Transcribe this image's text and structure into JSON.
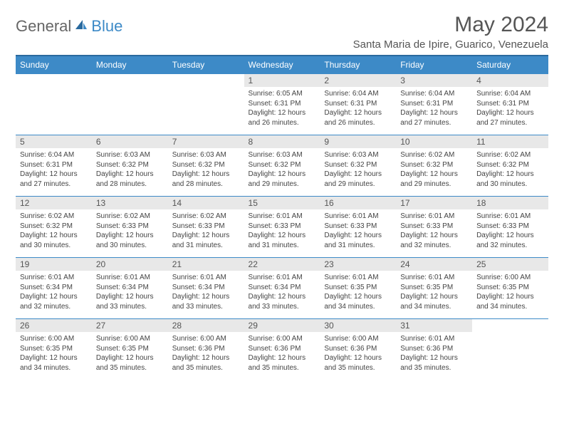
{
  "logo": {
    "part1": "General",
    "part2": "Blue"
  },
  "title": "May 2024",
  "location": "Santa Maria de Ipire, Guarico, Venezuela",
  "colors": {
    "header_bg": "#3d8ac7",
    "header_border": "#2a6a9e",
    "daynum_bg": "#e8e8e8",
    "row_border": "#3d8ac7",
    "text": "#444",
    "title_text": "#555",
    "logo_gray": "#666",
    "logo_blue": "#3d8ac7"
  },
  "dayNames": [
    "Sunday",
    "Monday",
    "Tuesday",
    "Wednesday",
    "Thursday",
    "Friday",
    "Saturday"
  ],
  "weeks": [
    [
      null,
      null,
      null,
      {
        "n": "1",
        "sr": "6:05 AM",
        "ss": "6:31 PM",
        "dl": "12 hours and 26 minutes."
      },
      {
        "n": "2",
        "sr": "6:04 AM",
        "ss": "6:31 PM",
        "dl": "12 hours and 26 minutes."
      },
      {
        "n": "3",
        "sr": "6:04 AM",
        "ss": "6:31 PM",
        "dl": "12 hours and 27 minutes."
      },
      {
        "n": "4",
        "sr": "6:04 AM",
        "ss": "6:31 PM",
        "dl": "12 hours and 27 minutes."
      }
    ],
    [
      {
        "n": "5",
        "sr": "6:04 AM",
        "ss": "6:31 PM",
        "dl": "12 hours and 27 minutes."
      },
      {
        "n": "6",
        "sr": "6:03 AM",
        "ss": "6:32 PM",
        "dl": "12 hours and 28 minutes."
      },
      {
        "n": "7",
        "sr": "6:03 AM",
        "ss": "6:32 PM",
        "dl": "12 hours and 28 minutes."
      },
      {
        "n": "8",
        "sr": "6:03 AM",
        "ss": "6:32 PM",
        "dl": "12 hours and 29 minutes."
      },
      {
        "n": "9",
        "sr": "6:03 AM",
        "ss": "6:32 PM",
        "dl": "12 hours and 29 minutes."
      },
      {
        "n": "10",
        "sr": "6:02 AM",
        "ss": "6:32 PM",
        "dl": "12 hours and 29 minutes."
      },
      {
        "n": "11",
        "sr": "6:02 AM",
        "ss": "6:32 PM",
        "dl": "12 hours and 30 minutes."
      }
    ],
    [
      {
        "n": "12",
        "sr": "6:02 AM",
        "ss": "6:32 PM",
        "dl": "12 hours and 30 minutes."
      },
      {
        "n": "13",
        "sr": "6:02 AM",
        "ss": "6:33 PM",
        "dl": "12 hours and 30 minutes."
      },
      {
        "n": "14",
        "sr": "6:02 AM",
        "ss": "6:33 PM",
        "dl": "12 hours and 31 minutes."
      },
      {
        "n": "15",
        "sr": "6:01 AM",
        "ss": "6:33 PM",
        "dl": "12 hours and 31 minutes."
      },
      {
        "n": "16",
        "sr": "6:01 AM",
        "ss": "6:33 PM",
        "dl": "12 hours and 31 minutes."
      },
      {
        "n": "17",
        "sr": "6:01 AM",
        "ss": "6:33 PM",
        "dl": "12 hours and 32 minutes."
      },
      {
        "n": "18",
        "sr": "6:01 AM",
        "ss": "6:33 PM",
        "dl": "12 hours and 32 minutes."
      }
    ],
    [
      {
        "n": "19",
        "sr": "6:01 AM",
        "ss": "6:34 PM",
        "dl": "12 hours and 32 minutes."
      },
      {
        "n": "20",
        "sr": "6:01 AM",
        "ss": "6:34 PM",
        "dl": "12 hours and 33 minutes."
      },
      {
        "n": "21",
        "sr": "6:01 AM",
        "ss": "6:34 PM",
        "dl": "12 hours and 33 minutes."
      },
      {
        "n": "22",
        "sr": "6:01 AM",
        "ss": "6:34 PM",
        "dl": "12 hours and 33 minutes."
      },
      {
        "n": "23",
        "sr": "6:01 AM",
        "ss": "6:35 PM",
        "dl": "12 hours and 34 minutes."
      },
      {
        "n": "24",
        "sr": "6:01 AM",
        "ss": "6:35 PM",
        "dl": "12 hours and 34 minutes."
      },
      {
        "n": "25",
        "sr": "6:00 AM",
        "ss": "6:35 PM",
        "dl": "12 hours and 34 minutes."
      }
    ],
    [
      {
        "n": "26",
        "sr": "6:00 AM",
        "ss": "6:35 PM",
        "dl": "12 hours and 34 minutes."
      },
      {
        "n": "27",
        "sr": "6:00 AM",
        "ss": "6:35 PM",
        "dl": "12 hours and 35 minutes."
      },
      {
        "n": "28",
        "sr": "6:00 AM",
        "ss": "6:36 PM",
        "dl": "12 hours and 35 minutes."
      },
      {
        "n": "29",
        "sr": "6:00 AM",
        "ss": "6:36 PM",
        "dl": "12 hours and 35 minutes."
      },
      {
        "n": "30",
        "sr": "6:00 AM",
        "ss": "6:36 PM",
        "dl": "12 hours and 35 minutes."
      },
      {
        "n": "31",
        "sr": "6:01 AM",
        "ss": "6:36 PM",
        "dl": "12 hours and 35 minutes."
      },
      null
    ]
  ],
  "labels": {
    "sunrise": "Sunrise:",
    "sunset": "Sunset:",
    "daylight": "Daylight:"
  }
}
